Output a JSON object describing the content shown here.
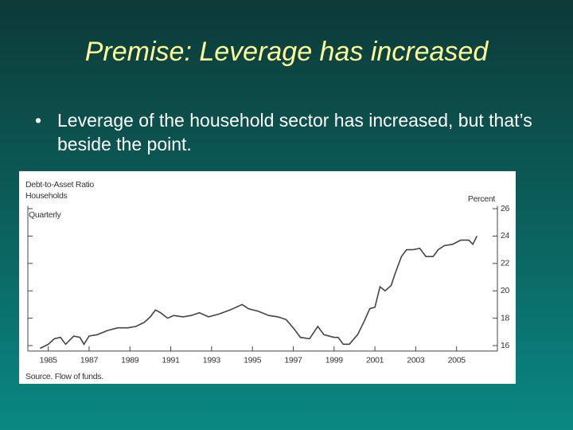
{
  "slide_title": "Premise: Leverage has increased",
  "bullet": "Leverage of the household sector has increased, but that’s beside the point.",
  "chart_data": {
    "type": "line",
    "title": "Debt-to-Asset Ratio",
    "subtitle": "Households",
    "frequency": "Quarterly",
    "y_axis_label": "Percent",
    "source": "Source. Flow of funds.",
    "color": "#444444",
    "xlim": [
      1984,
      2007
    ],
    "xticks": [
      1985,
      1987,
      1989,
      1991,
      1993,
      1995,
      1997,
      1999,
      2001,
      2003,
      2005
    ],
    "ylim": [
      15.6,
      26.2
    ],
    "yticks": [
      16,
      18,
      20,
      22,
      24,
      26
    ],
    "x": [
      1984.6,
      1985,
      1985.3,
      1985.6,
      1985.85,
      1986.25,
      1986.55,
      1986.75,
      1987,
      1987.4,
      1987.9,
      1988.4,
      1988.9,
      1989.3,
      1989.7,
      1990,
      1990.25,
      1990.5,
      1990.85,
      1991.15,
      1991.6,
      1992,
      1992.4,
      1992.85,
      1993.35,
      1993.9,
      1994.5,
      1994.8,
      1995.3,
      1995.8,
      1996.25,
      1996.65,
      1997.05,
      1997.35,
      1997.8,
      1998.2,
      1998.5,
      1999,
      1999.2,
      1999.45,
      1999.75,
      2000.15,
      2000.45,
      2000.75,
      2001,
      2001.25,
      2001.5,
      2001.8,
      2002,
      2002.3,
      2002.55,
      2002.85,
      2003.2,
      2003.5,
      2003.85,
      2004.1,
      2004.4,
      2004.8,
      2005.2,
      2005.6,
      2005.8,
      2006
    ],
    "values": [
      15.8,
      16.1,
      16.5,
      16.6,
      16.1,
      16.7,
      16.6,
      16.1,
      16.7,
      16.8,
      17.1,
      17.3,
      17.3,
      17.4,
      17.7,
      18.1,
      18.6,
      18.4,
      18,
      18.2,
      18.1,
      18.2,
      18.4,
      18.1,
      18.3,
      18.6,
      19,
      18.7,
      18.5,
      18.2,
      18.1,
      17.9,
      17.2,
      16.6,
      16.5,
      17.4,
      16.8,
      16.6,
      16.6,
      16.1,
      16.1,
      16.8,
      17.7,
      18.7,
      18.8,
      20.3,
      20,
      20.4,
      21.3,
      22.5,
      23,
      23,
      23.1,
      22.5,
      22.5,
      23,
      23.3,
      23.4,
      23.7,
      23.7,
      23.4,
      24
    ]
  }
}
